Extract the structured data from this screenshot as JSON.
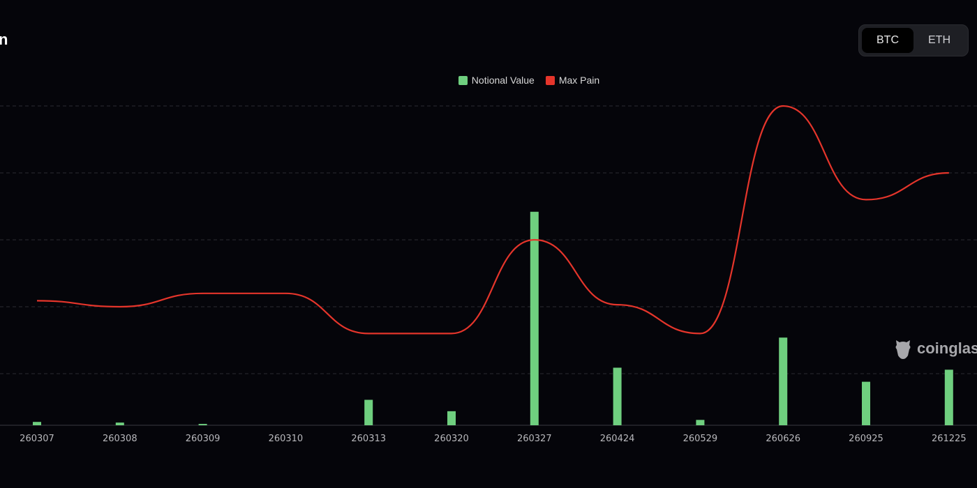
{
  "header": {
    "title": "n"
  },
  "toggle": {
    "options": [
      "BTC",
      "ETH"
    ],
    "selected": "BTC"
  },
  "watermark": "coinglass",
  "colors": {
    "bar": "#6fcf7f",
    "line": "#e5352b",
    "grid": "#2b2c33",
    "text": "#b8b8bc"
  },
  "chart_data": {
    "type": "bar+line",
    "title": "",
    "legend": [
      "Notional Value",
      "Max Pain"
    ],
    "legend_position": "top-center",
    "categories": [
      "260307",
      "260308",
      "260309",
      "260310",
      "260313",
      "260320",
      "260327",
      "260424",
      "260529",
      "260626",
      "260925",
      "261225"
    ],
    "series": [
      {
        "name": "Notional Value",
        "type": "bar",
        "values": [
          0.05,
          0.04,
          0.02,
          0,
          0.38,
          0.21,
          3.19,
          0.86,
          0.08,
          1.31,
          0.65,
          0.83
        ]
      },
      {
        "name": "Max Pain",
        "type": "line",
        "values": [
          2.09,
          2.0,
          2.2,
          2.2,
          1.6,
          1.6,
          3.0,
          2.03,
          1.6,
          5.0,
          3.6,
          4.0
        ]
      }
    ],
    "units": "relative (y-axis labels not visible)",
    "grid": true
  }
}
